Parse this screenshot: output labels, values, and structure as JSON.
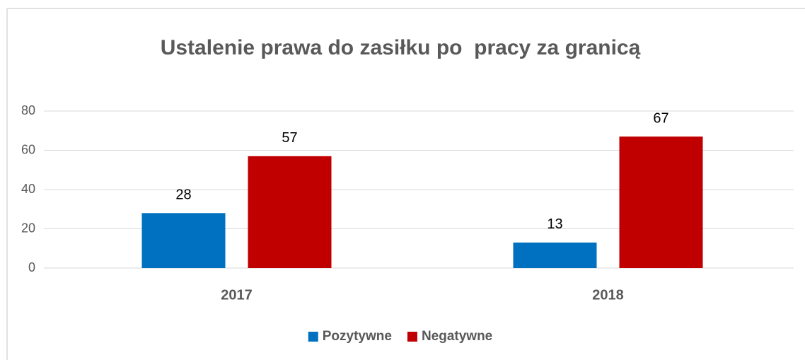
{
  "chart_data": {
    "type": "bar",
    "title": "Ustalenie prawa do zasiłku po  pracy za granicą",
    "categories": [
      "2017",
      "2018"
    ],
    "series": [
      {
        "name": "Pozytywne",
        "color": "#0070c0",
        "values": [
          28,
          13
        ]
      },
      {
        "name": "Negatywne",
        "color": "#c00000",
        "values": [
          57,
          67
        ]
      }
    ],
    "ylim": [
      0,
      80
    ],
    "yticks": [
      0,
      20,
      40,
      60,
      80
    ],
    "grid": true,
    "legend": "bottom",
    "data_labels": true
  }
}
